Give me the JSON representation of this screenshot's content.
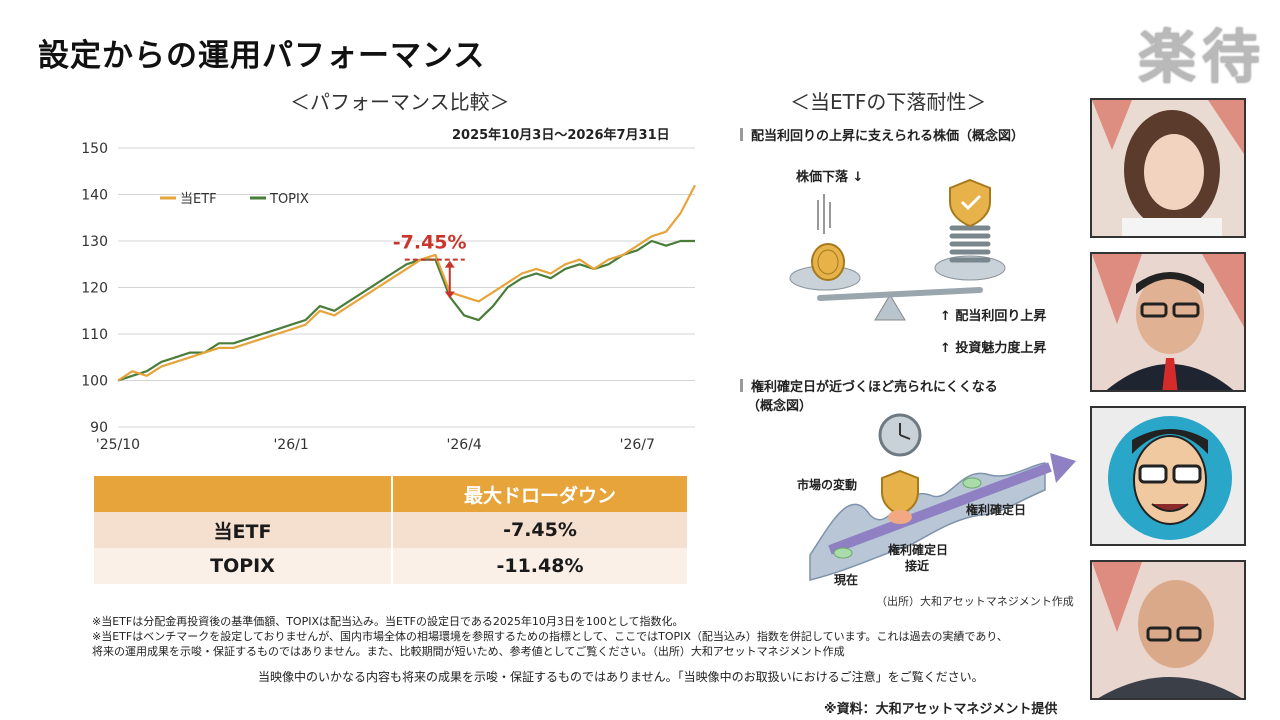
{
  "header": {
    "title": "設定からの運用パフォーマンス",
    "logo": "楽待"
  },
  "left": {
    "heading": "＜パフォーマンス比較＞",
    "period": "2025年10月3日～2026年7月31日",
    "drawdown_label": "-7.45%"
  },
  "chart_data": {
    "type": "line",
    "period": "2025年10月3日～2026年7月31日",
    "x_tick_labels": [
      "'25/10",
      "'26/1",
      "'26/4",
      "'26/7"
    ],
    "y_ticks": [
      90,
      100,
      110,
      120,
      130,
      140,
      150
    ],
    "ylim": [
      90,
      150
    ],
    "legend_position": "top-left",
    "grid": "horizontal",
    "annotation": "-7.45%",
    "x_months_since_start": [
      0,
      0.25,
      0.5,
      0.75,
      1,
      1.25,
      1.5,
      1.75,
      2,
      2.25,
      2.5,
      2.75,
      3,
      3.25,
      3.5,
      3.75,
      4,
      4.25,
      4.5,
      4.75,
      5,
      5.25,
      5.5,
      5.75,
      6,
      6.25,
      6.5,
      6.75,
      7,
      7.25,
      7.5,
      7.75,
      8,
      8.25,
      8.5,
      8.75,
      9,
      9.25,
      9.5,
      9.75,
      10
    ],
    "series": [
      {
        "name": "当ETF",
        "color": "#e6a43a",
        "values": [
          100,
          102,
          101,
          103,
          104,
          105,
          106,
          107,
          107,
          108,
          109,
          110,
          111,
          112,
          115,
          114,
          116,
          118,
          120,
          122,
          124,
          126,
          127,
          119,
          118,
          117,
          119,
          121,
          123,
          124,
          123,
          125,
          126,
          124,
          126,
          127,
          129,
          131,
          132,
          136,
          142
        ]
      },
      {
        "name": "TOPIX",
        "color": "#4a7c3a",
        "values": [
          100,
          101,
          102,
          104,
          105,
          106,
          106,
          108,
          108,
          109,
          110,
          111,
          112,
          113,
          116,
          115,
          117,
          119,
          121,
          123,
          125,
          126,
          126,
          118,
          114,
          113,
          116,
          120,
          122,
          123,
          122,
          124,
          125,
          124,
          125,
          127,
          128,
          130,
          129,
          130,
          130
        ]
      }
    ]
  },
  "drawdown_table": {
    "header": [
      "",
      "最大ドローダウン"
    ],
    "rows": [
      {
        "label": "当ETF",
        "value": "-7.45%"
      },
      {
        "label": "TOPIX",
        "value": "-11.48%"
      }
    ]
  },
  "notes": [
    "※当ETFは分配金再投資後の基準価額、TOPIXは配当込み。当ETFの設定日である2025年10月3日を100として指数化。",
    "※当ETFはベンチマークを設定しておりませんが、国内市場全体の相場環境を参照するための指標として、ここではTOPIX（配当込み）指数を併記しています。これは過去の実績であり、",
    "将来の運用成果を示唆・保証するものではありません。また、比較期間が短いため、参考値としてご覧ください。（出所）大和アセットマネジメント作成"
  ],
  "disclaimer": "当映像中のいかなる内容も将来の成果を示唆・保証するものではありません。「当映像中のお取扱いにおけるご注意」をご覧ください。",
  "source": "※資料：大和アセットマネジメント提供",
  "right": {
    "heading": "＜当ETFの下落耐性＞",
    "section1": "配当利回りの上昇に支えられる株価（概念図）",
    "price_down": "株価下落 ↓",
    "yield_up": "↑ 配当利回り上昇",
    "appeal_up": "↑ 投資魅力度上昇",
    "section2_line1": "権利確定日が近づくほど売られにくくなる",
    "section2_line2": "（概念図）",
    "market_move": "市場の変動",
    "record_date": "権利確定日",
    "record_near_1": "権利確定日",
    "record_near_2": "接近",
    "now": "現在",
    "source": "（出所）大和アセットマネジメント作成"
  }
}
